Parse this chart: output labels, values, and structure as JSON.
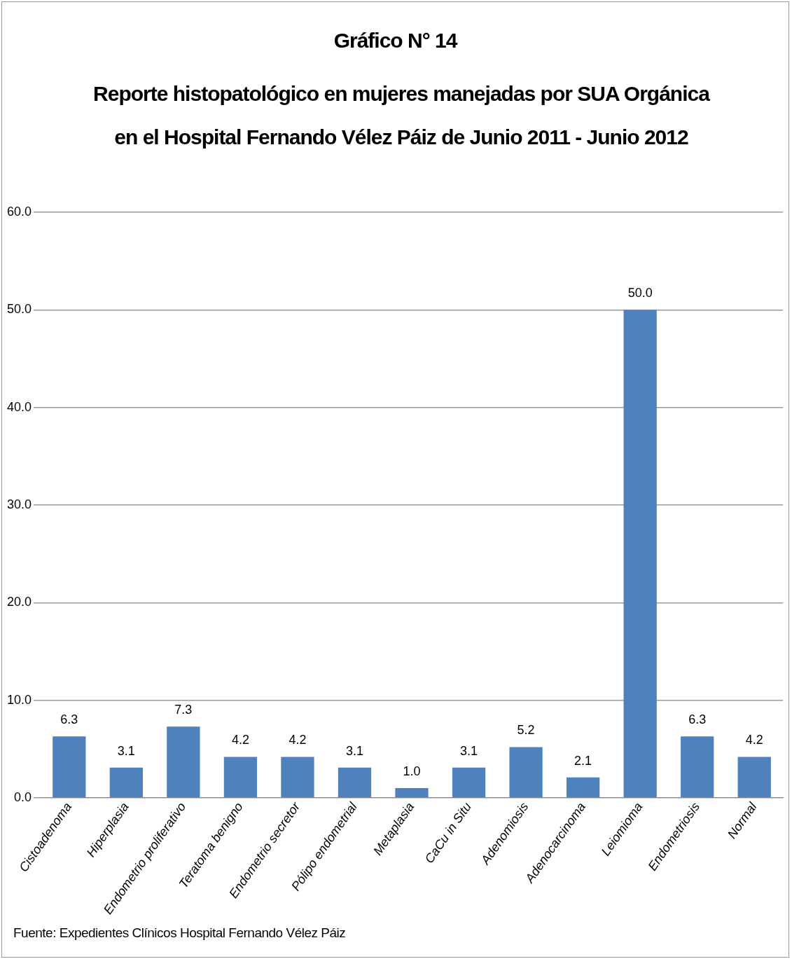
{
  "chart_data": {
    "type": "bar",
    "title": "Gráfico N° 14",
    "subtitle": "Reporte histopatológico en mujeres manejadas por SUA Orgánica en el Hospital Fernando Vélez Páiz de Junio 2011 - Junio 2012",
    "categories": [
      "Cistoadenoma",
      "Hiperplasia",
      "Endometrio proliferativo",
      "Teratoma benigno",
      "Endometrio secretor",
      "Pólipo endometrial",
      "Metaplasia",
      "CaCu in Situ",
      "Adenomiosis",
      "Adenocarcinoma",
      "Leiomioma",
      "Endometriosis",
      "Normal"
    ],
    "values": [
      6.3,
      3.1,
      7.3,
      4.2,
      4.2,
      3.1,
      1.0,
      3.1,
      5.2,
      2.1,
      50.0,
      6.3,
      4.2
    ],
    "value_labels": [
      "6.3",
      "3.1",
      "7.3",
      "4.2",
      "4.2",
      "3.1",
      "1.0",
      "3.1",
      "5.2",
      "2.1",
      "50.0",
      "6.3",
      "4.2"
    ],
    "color": "#4f81bd",
    "ylim": [
      0,
      60
    ],
    "yticks": [
      {
        "value": 0,
        "label": "0.0"
      },
      {
        "value": 10,
        "label": "10.0"
      },
      {
        "value": 20,
        "label": "20.0"
      },
      {
        "value": 30,
        "label": "30.0"
      },
      {
        "value": 40,
        "label": "40.0"
      },
      {
        "value": 50,
        "label": "50.0"
      },
      {
        "value": 60,
        "label": "60.0"
      }
    ],
    "grid": "y",
    "legend": false,
    "annotations": [
      "Fuente: Expedientes Clínicos Hospital Fernando Vélez Páiz"
    ]
  }
}
